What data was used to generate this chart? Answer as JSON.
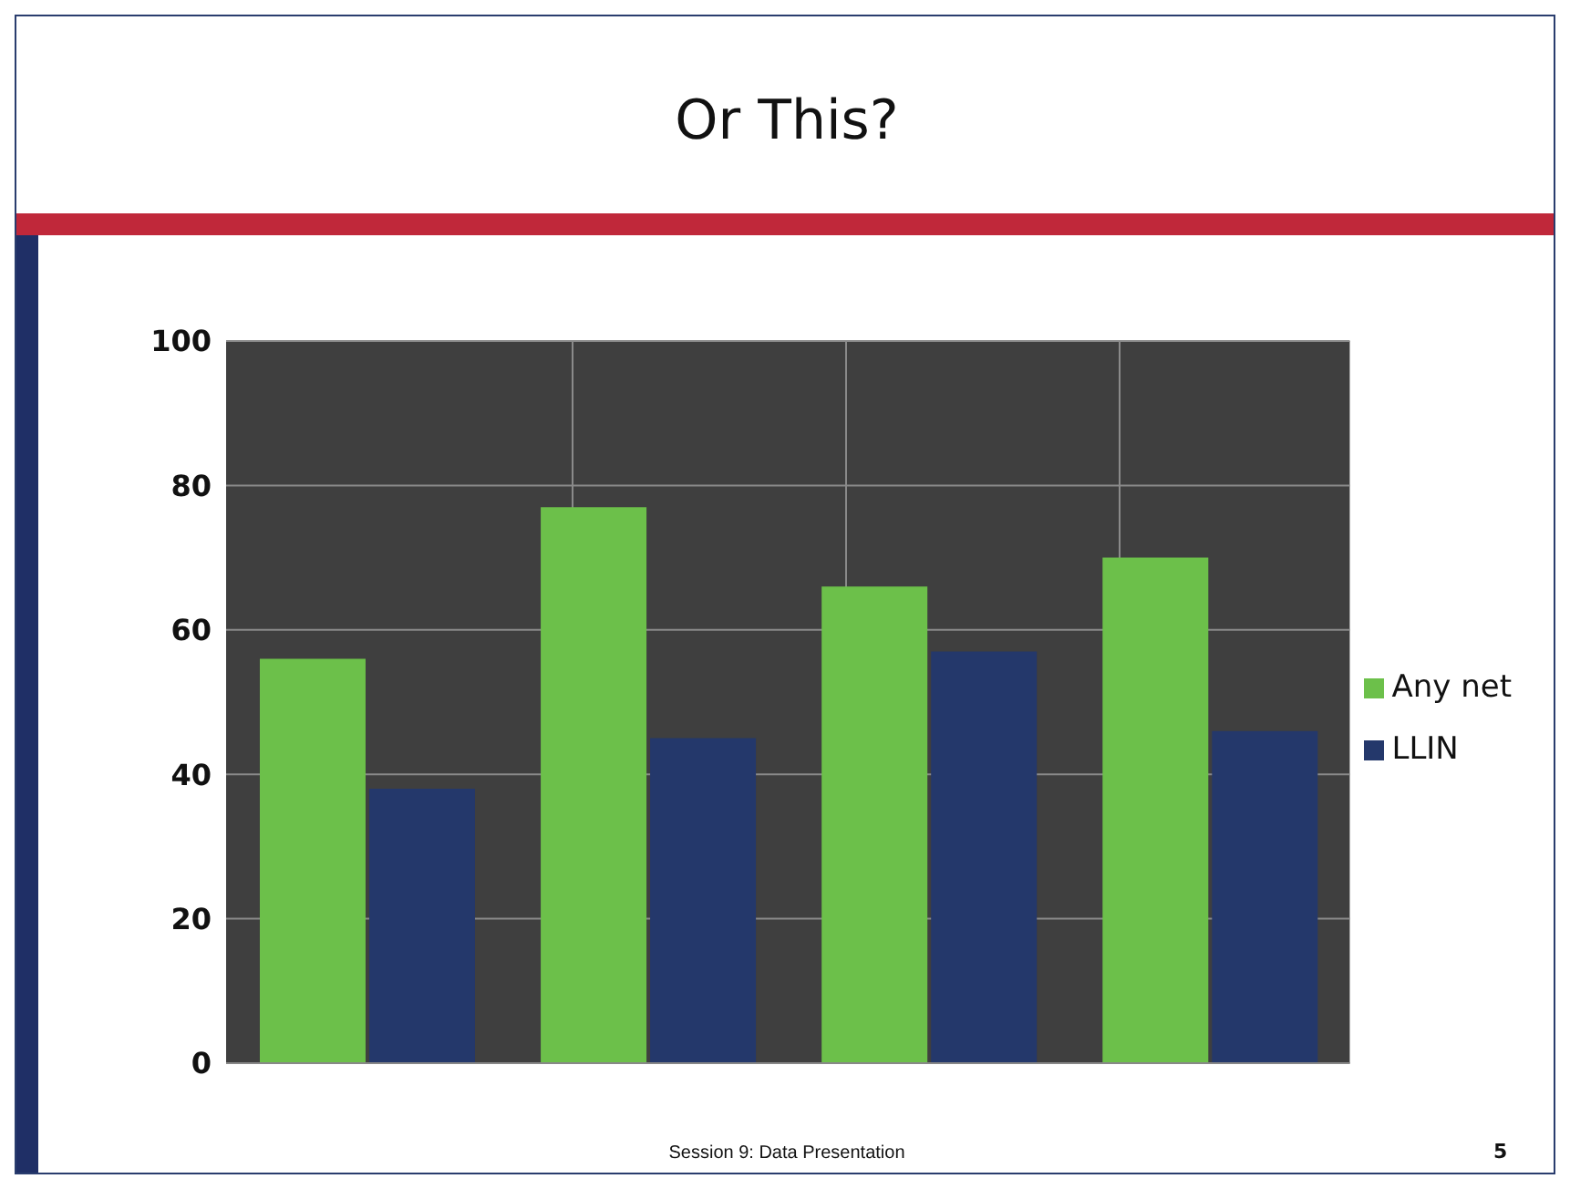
{
  "chart_data": {
    "type": "bar",
    "title": "Or This?",
    "categories": [
      null,
      null,
      null,
      null
    ],
    "series": [
      {
        "name": "Any net",
        "color": "#6cc04a",
        "values": [
          56,
          77,
          66,
          70
        ]
      },
      {
        "name": "LLIN",
        "color": "#24386b",
        "values": [
          38,
          45,
          57,
          46
        ]
      }
    ],
    "ylim": [
      0,
      100
    ],
    "yticks": [
      0,
      20,
      40,
      60,
      80,
      100
    ],
    "grid": true,
    "legend": "right",
    "annotations": [
      "Session 9: Data Presentation",
      "5"
    ]
  }
}
